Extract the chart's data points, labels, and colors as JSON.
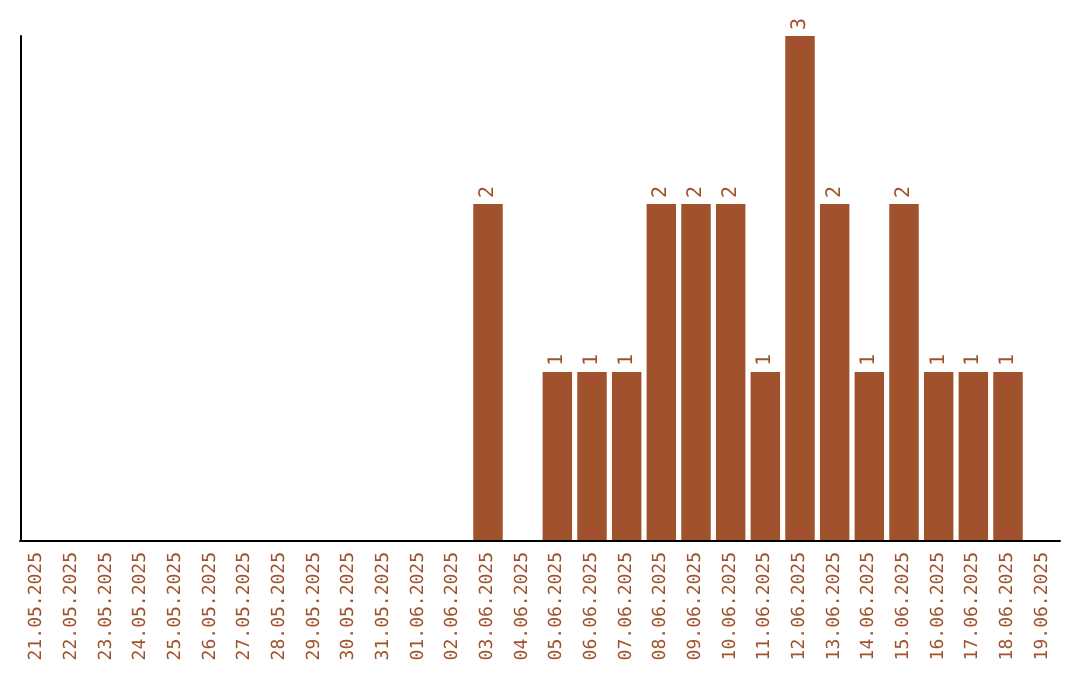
{
  "chart_data": {
    "type": "bar",
    "categories": [
      "21.05.2025",
      "22.05.2025",
      "23.05.2025",
      "24.05.2025",
      "25.05.2025",
      "26.05.2025",
      "27.05.2025",
      "28.05.2025",
      "29.05.2025",
      "30.05.2025",
      "31.05.2025",
      "01.06.2025",
      "02.06.2025",
      "03.06.2025",
      "04.06.2025",
      "05.06.2025",
      "06.06.2025",
      "07.06.2025",
      "08.06.2025",
      "09.06.2025",
      "10.06.2025",
      "11.06.2025",
      "12.06.2025",
      "13.06.2025",
      "14.06.2025",
      "15.06.2025",
      "16.06.2025",
      "17.06.2025",
      "18.06.2025",
      "19.06.2025"
    ],
    "values": [
      null,
      null,
      null,
      null,
      null,
      null,
      null,
      null,
      null,
      null,
      null,
      null,
      null,
      2,
      null,
      1,
      1,
      1,
      2,
      2,
      2,
      1,
      3,
      2,
      1,
      2,
      1,
      1,
      1,
      null
    ],
    "data_labels": true,
    "color": "#a0522d",
    "grid": false
  }
}
